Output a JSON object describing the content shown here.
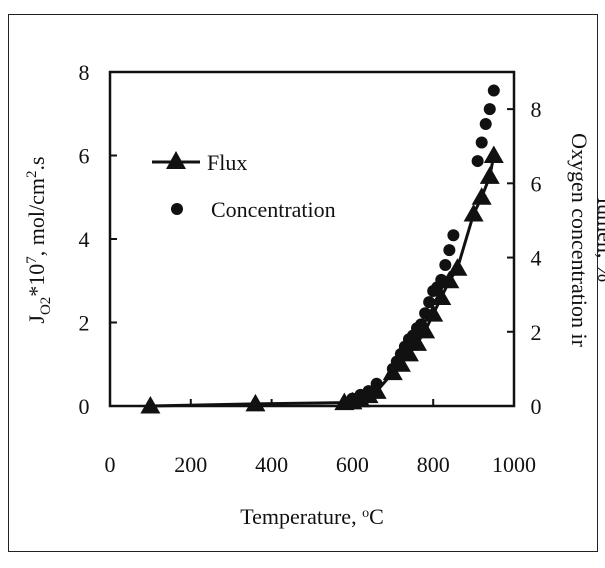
{
  "chart_data": {
    "type": "scatter",
    "title": "",
    "xlabel": "Temperature, °C",
    "ylabel_left": "J_O2*10^7, mol/cm^2.s",
    "ylabel_right": "Oxygen concentration ir lumen, %",
    "xlim": [
      0,
      1000
    ],
    "ylim_left": [
      0,
      8
    ],
    "ylim_right": [
      0,
      9
    ],
    "x_ticks": [
      0,
      200,
      400,
      600,
      800,
      1000
    ],
    "y_left_ticks": [
      0,
      2,
      4,
      6,
      8
    ],
    "y_right_ticks": [
      0,
      2,
      4,
      6,
      8
    ],
    "grid": false,
    "legend_position": "upper-left",
    "series": [
      {
        "name": "Flux",
        "marker": "triangle",
        "line": true,
        "axis": "left",
        "x": [
          100,
          360,
          580,
          600,
          620,
          640,
          660,
          700,
          720,
          740,
          760,
          780,
          800,
          820,
          840,
          860,
          900,
          920,
          940,
          950
        ],
        "y": [
          0.0,
          0.05,
          0.08,
          0.1,
          0.15,
          0.25,
          0.35,
          0.8,
          1.0,
          1.25,
          1.5,
          1.8,
          2.2,
          2.6,
          3.0,
          3.3,
          4.6,
          5.0,
          5.5,
          6.0
        ]
      },
      {
        "name": "Concentration",
        "marker": "circle",
        "line": false,
        "axis": "right",
        "x": [
          600,
          620,
          640,
          660,
          700,
          710,
          720,
          730,
          740,
          750,
          760,
          770,
          780,
          790,
          800,
          810,
          820,
          830,
          840,
          850,
          910,
          920,
          930,
          940,
          950
        ],
        "y": [
          0.2,
          0.3,
          0.4,
          0.6,
          1.0,
          1.2,
          1.4,
          1.6,
          1.8,
          1.9,
          2.1,
          2.2,
          2.5,
          2.8,
          3.1,
          3.2,
          3.4,
          3.8,
          4.2,
          4.6,
          6.6,
          7.1,
          7.6,
          8.0,
          8.5
        ]
      }
    ]
  }
}
